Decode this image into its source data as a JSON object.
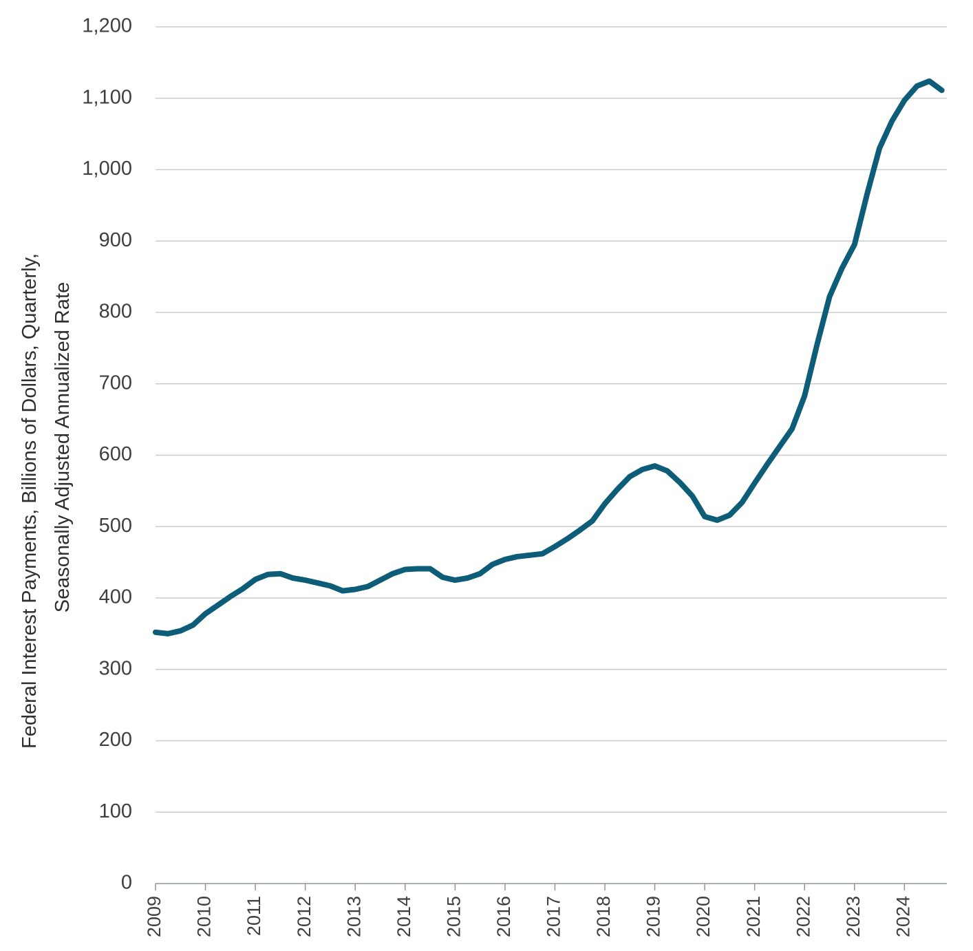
{
  "chart_data": {
    "type": "line",
    "title": "",
    "xlabel": "",
    "ylabel": "Federal Interest Payments, Billions of Dollars, Quarterly,",
    "ylabel_line2": "Seasonally Adjusted Annualized Rate",
    "ylim": [
      0,
      1200
    ],
    "xlim": [
      2009.0,
      2024.85
    ],
    "yticks": [
      0,
      100,
      200,
      300,
      400,
      500,
      600,
      700,
      800,
      900,
      1000,
      1100,
      1200
    ],
    "ytick_labels": [
      "0",
      "100",
      "200",
      "300",
      "400",
      "500",
      "600",
      "700",
      "800",
      "900",
      "1,000",
      "1,100",
      "1,200"
    ],
    "xticks": [
      2009,
      2010,
      2011,
      2012,
      2013,
      2014,
      2015,
      2016,
      2017,
      2018,
      2019,
      2020,
      2021,
      2022,
      2023,
      2024
    ],
    "xtick_labels": [
      "2009",
      "2010",
      "2011",
      "2012",
      "2013",
      "2014",
      "2015",
      "2016",
      "2017",
      "2018",
      "2019",
      "2020",
      "2021",
      "2022",
      "2023",
      "2024"
    ],
    "grid": true,
    "colors": {
      "line": "#0d5c78",
      "grid": "#c9cdd1"
    },
    "series": [
      {
        "name": "Federal Interest Payments",
        "x": [
          2009.0,
          2009.25,
          2009.5,
          2009.75,
          2010.0,
          2010.25,
          2010.5,
          2010.75,
          2011.0,
          2011.25,
          2011.5,
          2011.75,
          2012.0,
          2012.25,
          2012.5,
          2012.75,
          2013.0,
          2013.25,
          2013.5,
          2013.75,
          2014.0,
          2014.25,
          2014.5,
          2014.75,
          2015.0,
          2015.25,
          2015.5,
          2015.75,
          2016.0,
          2016.25,
          2016.5,
          2016.75,
          2017.0,
          2017.25,
          2017.5,
          2017.75,
          2018.0,
          2018.25,
          2018.5,
          2018.75,
          2019.0,
          2019.25,
          2019.5,
          2019.75,
          2020.0,
          2020.25,
          2020.5,
          2020.75,
          2021.0,
          2021.25,
          2021.5,
          2021.75,
          2022.0,
          2022.25,
          2022.5,
          2022.75,
          2023.0,
          2023.25,
          2023.5,
          2023.75,
          2024.0,
          2024.25,
          2024.5,
          2024.75
        ],
        "values": [
          352,
          350,
          354,
          362,
          378,
          390,
          402,
          413,
          426,
          433,
          434,
          428,
          425,
          421,
          417,
          410,
          412,
          416,
          425,
          434,
          440,
          441,
          441,
          429,
          425,
          428,
          434,
          447,
          454,
          458,
          460,
          462,
          472,
          483,
          495,
          508,
          532,
          552,
          570,
          580,
          585,
          578,
          562,
          543,
          514,
          509,
          516,
          534,
          561,
          587,
          612,
          637,
          683,
          755,
          822,
          862,
          895,
          965,
          1030,
          1068,
          1097,
          1117,
          1124,
          1111
        ]
      }
    ]
  }
}
